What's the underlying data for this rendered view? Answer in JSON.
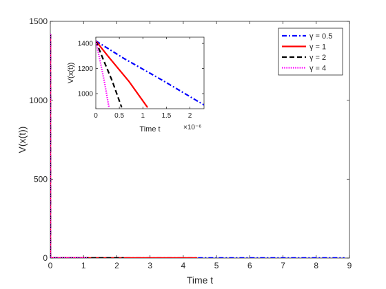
{
  "chart_data": [
    {
      "type": "line",
      "role": "main",
      "xlabel": "Time t",
      "ylabel": "V(x(t))",
      "xlim": [
        0,
        9
      ],
      "ylim": [
        0,
        1500
      ],
      "xticks": [
        0,
        1,
        2,
        3,
        4,
        5,
        6,
        7,
        8,
        9
      ],
      "yticks": [
        0,
        500,
        1000,
        1500
      ],
      "grid": false,
      "legend": "top-right",
      "series": [
        {
          "name": "γ = 0.5",
          "color": "#0000ff",
          "style": "dash-dot",
          "x": [
            0,
            0,
            8.85
          ],
          "y": [
            1420,
            0,
            0
          ]
        },
        {
          "name": "γ = 1",
          "color": "#ff0000",
          "style": "solid",
          "x": [
            0,
            0,
            4.42
          ],
          "y": [
            1420,
            0,
            0
          ]
        },
        {
          "name": "γ = 2",
          "color": "#000000",
          "style": "dashed",
          "x": [
            0,
            0,
            2.21
          ],
          "y": [
            1420,
            0,
            0
          ]
        },
        {
          "name": "γ = 4",
          "color": "#ff00ff",
          "style": "dotted",
          "x": [
            0,
            0,
            1.1
          ],
          "y": [
            1420,
            0,
            0
          ]
        }
      ]
    },
    {
      "type": "line",
      "role": "inset",
      "xlabel": "Time t",
      "ylabel": "V(x(t))",
      "x_multiplier": "×10⁻⁶",
      "xlim": [
        0,
        2.3
      ],
      "ylim": [
        880,
        1450
      ],
      "xticks": [
        0,
        0.5,
        1,
        1.5,
        2
      ],
      "xtick_labels": [
        "0",
        "0.5",
        "1",
        "1.5",
        "2"
      ],
      "yticks": [
        1000,
        1200,
        1400
      ],
      "grid": false,
      "series": [
        {
          "name": "γ = 0.5",
          "color": "#0000ff",
          "style": "dash-dot",
          "x": [
            0,
            0.6,
            1.4,
            2.3
          ],
          "y": [
            1420,
            1280,
            1110,
            910
          ]
        },
        {
          "name": "γ = 1",
          "color": "#ff0000",
          "style": "solid",
          "x": [
            0,
            0.3,
            0.7,
            1.1
          ],
          "y": [
            1420,
            1280,
            1100,
            890
          ]
        },
        {
          "name": "γ = 2",
          "color": "#000000",
          "style": "dashed",
          "x": [
            0,
            0.15,
            0.35,
            0.55
          ],
          "y": [
            1420,
            1280,
            1100,
            890
          ]
        },
        {
          "name": "γ = 4",
          "color": "#ff00ff",
          "style": "dotted",
          "x": [
            0,
            0.08,
            0.18,
            0.28
          ],
          "y": [
            1420,
            1280,
            1100,
            890
          ]
        }
      ]
    }
  ]
}
